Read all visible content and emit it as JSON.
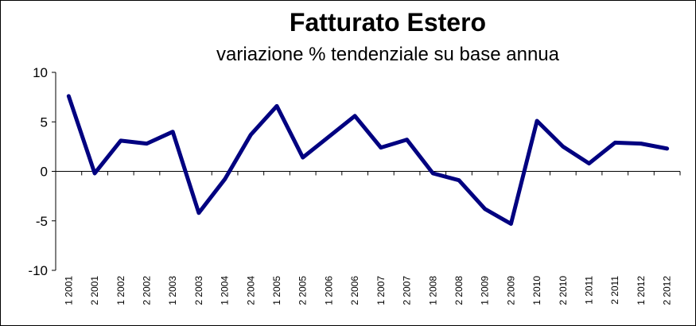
{
  "chart_data": {
    "type": "line",
    "title": "Fatturato Estero",
    "subtitle": "variazione % tendenziale su base annua",
    "xlabel": "",
    "ylabel": "",
    "ylim": [
      -10,
      10
    ],
    "yticks": [
      -10,
      -5,
      0,
      5,
      10
    ],
    "grid": false,
    "legend": "none",
    "categories": [
      "1 2001",
      "2 2001",
      "1 2002",
      "2 2002",
      "1 2003",
      "2 2003",
      "1 2004",
      "2 2004",
      "1 2005",
      "2 2005",
      "1 2006",
      "2 2006",
      "1 2007",
      "2 2007",
      "1 2008",
      "2 2008",
      "1 2009",
      "2 2009",
      "1 2010",
      "2 2010",
      "1 2011",
      "2 2011",
      "1 2012",
      "2 2012"
    ],
    "series": [
      {
        "color": "#000080",
        "values": [
          7.6,
          -0.2,
          3.1,
          2.8,
          4.0,
          -4.2,
          -0.8,
          3.7,
          6.6,
          1.4,
          3.5,
          5.6,
          2.4,
          3.2,
          -0.2,
          -0.9,
          -3.8,
          -5.3,
          5.1,
          2.5,
          0.8,
          2.9,
          2.8,
          2.3
        ]
      }
    ]
  }
}
